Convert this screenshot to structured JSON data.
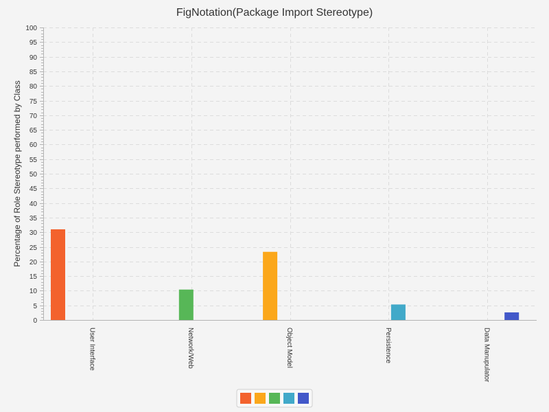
{
  "chart_data": {
    "type": "bar",
    "title": "FigNotation(Package Import Stereotype)",
    "xlabel": "",
    "ylabel": "Percentage of Role Stereotype performed by Class",
    "ylim": [
      0,
      100
    ],
    "ytick_step": 5,
    "grid": true,
    "legend_position": "bottom-center",
    "categories": [
      "User Interface",
      "Network/Web",
      "Object Model",
      "Persistence",
      "Data Manupulator"
    ],
    "series": [
      {
        "name": "User Interface",
        "color": "#f3622d",
        "values": [
          31,
          0,
          0,
          0,
          0
        ]
      },
      {
        "name": "Object Model",
        "color": "#fba71b",
        "values": [
          0,
          0,
          23.3,
          0,
          0
        ]
      },
      {
        "name": "Network/Web",
        "color": "#57b757",
        "values": [
          0,
          10.4,
          0,
          0,
          0
        ]
      },
      {
        "name": "Persistence",
        "color": "#41a9c9",
        "values": [
          0,
          0,
          0,
          5.3,
          0
        ]
      },
      {
        "name": "Data Manupulator",
        "color": "#4258c9",
        "values": [
          0,
          0,
          0,
          0,
          2.6
        ]
      }
    ]
  }
}
